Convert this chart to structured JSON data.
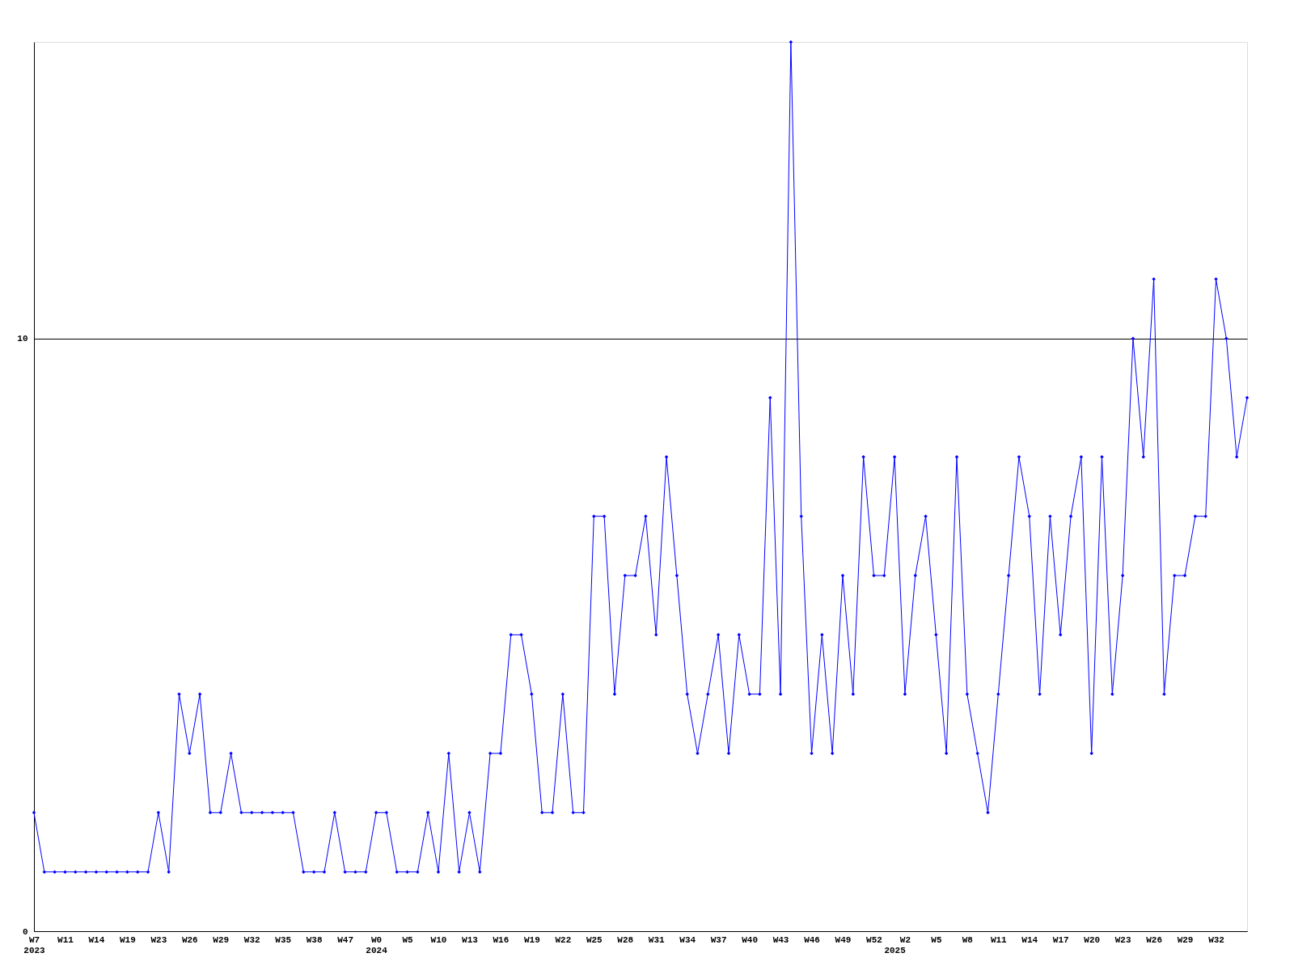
{
  "chart_data": {
    "type": "line",
    "categories": [
      "W7\n2023",
      null,
      null,
      "W11",
      null,
      null,
      "W14",
      null,
      null,
      "W19",
      null,
      null,
      "W23",
      null,
      null,
      "W26",
      null,
      null,
      "W29",
      null,
      null,
      "W32",
      null,
      null,
      "W35",
      null,
      null,
      "W38",
      null,
      null,
      "W47",
      null,
      null,
      "W0\n2024",
      null,
      null,
      "W5",
      null,
      null,
      "W10",
      null,
      null,
      "W13",
      null,
      null,
      "W16",
      null,
      null,
      "W19",
      null,
      null,
      "W22",
      null,
      null,
      "W25",
      null,
      null,
      "W28",
      null,
      null,
      "W31",
      null,
      null,
      "W34",
      null,
      null,
      "W37",
      null,
      null,
      "W40",
      null,
      null,
      "W43",
      null,
      null,
      "W46",
      null,
      null,
      "W49",
      null,
      null,
      "W52",
      null,
      "\n2025",
      "W2",
      null,
      null,
      "W5",
      null,
      null,
      "W8",
      null,
      null,
      "W11",
      null,
      null,
      "W14",
      null,
      null,
      "W17",
      null,
      null,
      "W20",
      null,
      null,
      "W23",
      null,
      null,
      "W26",
      null,
      null,
      "W29",
      null,
      null,
      "W32",
      null,
      null,
      null
    ],
    "series": [
      {
        "color": "#0000ff",
        "values": [
          2,
          1,
          1,
          1,
          1,
          1,
          1,
          1,
          1,
          1,
          1,
          1,
          2,
          1,
          4,
          3,
          4,
          2,
          2,
          3,
          2,
          2,
          2,
          2,
          2,
          2,
          1,
          1,
          1,
          2,
          1,
          1,
          1,
          2,
          2,
          1,
          1,
          1,
          2,
          1,
          3,
          1,
          2,
          1,
          3,
          3,
          5,
          5,
          4,
          2,
          2,
          4,
          2,
          2,
          7,
          7,
          4,
          6,
          6,
          7,
          5,
          8,
          6,
          4,
          3,
          4,
          5,
          3,
          5,
          4,
          4,
          9,
          4,
          15,
          7,
          3,
          5,
          3,
          6,
          4,
          8,
          6,
          6,
          8,
          4,
          6,
          7,
          5,
          3,
          8,
          4,
          3,
          2,
          4,
          6,
          8,
          7,
          4,
          7,
          5,
          7,
          8,
          3,
          8,
          4,
          6,
          10,
          8,
          11,
          4,
          6,
          6,
          7,
          7,
          11,
          10,
          8,
          9
        ]
      }
    ],
    "ylim": [
      0,
      15
    ],
    "yticks": [
      0,
      10
    ],
    "grid": "y",
    "marker": "diamond",
    "line_style": "solid"
  }
}
